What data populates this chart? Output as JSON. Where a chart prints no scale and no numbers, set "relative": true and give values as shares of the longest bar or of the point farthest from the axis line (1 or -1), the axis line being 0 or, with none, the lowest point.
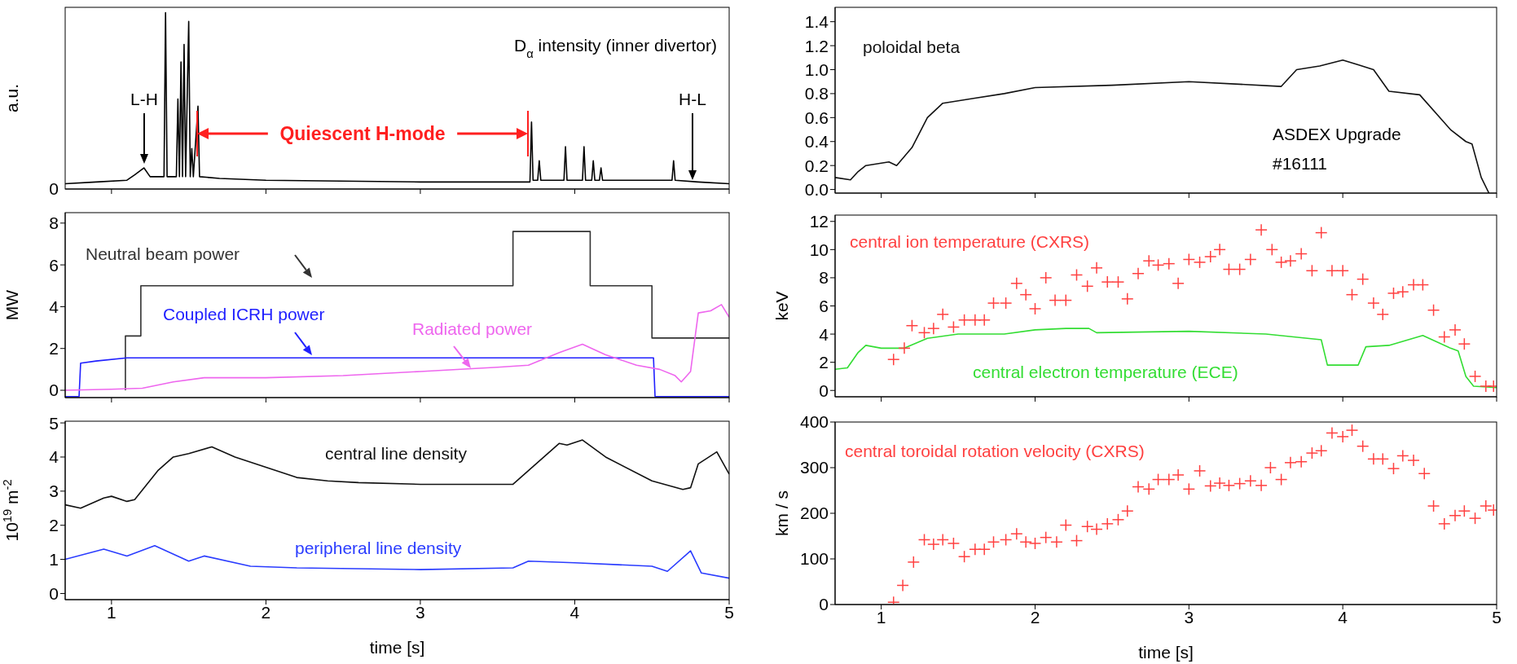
{
  "chart_data": [
    {
      "type": "line",
      "relative": true,
      "title": "D$_{α}$ intensity (inner divertor)",
      "ylabel": "a.u.",
      "xlim": [
        0.7,
        5
      ],
      "xticks": [
        1,
        2,
        3,
        4,
        5
      ],
      "tick_labels": false,
      "series": [
        {
          "color": "#000000",
          "x": [
            0.7,
            0.9,
            1.1,
            1.15,
            1.21,
            1.25,
            1.34,
            1.35,
            1.36,
            1.42,
            1.43,
            1.44,
            1.45,
            1.46,
            1.47,
            1.48,
            1.5,
            1.51,
            1.52,
            1.53,
            1.56,
            1.57,
            1.7,
            2.0,
            3.0,
            3.71,
            3.72,
            3.73,
            3.76,
            3.77,
            3.78,
            3.93,
            3.94,
            3.95,
            4.05,
            4.06,
            4.07,
            4.11,
            4.12,
            4.13,
            4.16,
            4.17,
            4.18,
            4.63,
            4.64,
            4.65,
            4.8,
            5.0
          ],
          "values": [
            0.03,
            0.04,
            0.05,
            0.08,
            0.12,
            0.07,
            0.07,
            1.0,
            0.07,
            0.07,
            0.51,
            0.07,
            0.72,
            0.07,
            0.82,
            0.07,
            0.95,
            0.07,
            0.23,
            0.07,
            0.47,
            0.07,
            0.06,
            0.05,
            0.04,
            0.04,
            0.38,
            0.05,
            0.05,
            0.16,
            0.05,
            0.05,
            0.24,
            0.05,
            0.05,
            0.24,
            0.05,
            0.05,
            0.16,
            0.05,
            0.05,
            0.12,
            0.05,
            0.05,
            0.16,
            0.05,
            0.04,
            0.03
          ]
        }
      ],
      "annotations": [
        "0",
        "L-H",
        "H-L",
        "Quiescent H-mode"
      ]
    },
    {
      "type": "line",
      "ylabel": "MW",
      "xlim": [
        0.7,
        5
      ],
      "xticks": [
        1,
        2,
        3,
        4,
        5
      ],
      "ylim": [
        -0.35,
        8.5
      ],
      "yticks": [
        0,
        2,
        4,
        6,
        8
      ],
      "tick_labels": "y",
      "series": [
        {
          "name": "Neutral beam power",
          "type": "step",
          "color": "#333333",
          "x": [
            1.09,
            1.09,
            1.19,
            3.6,
            4.1,
            4.5,
            5
          ],
          "values": [
            0,
            2.6,
            5,
            7.6,
            5,
            2.5,
            2.5
          ]
        },
        {
          "name": "Coupled ICRH power",
          "color": "#2020ff",
          "x": [
            0.7,
            0.79,
            0.8,
            0.9,
            1.1,
            4.51,
            4.52,
            5
          ],
          "values": [
            -0.3,
            -0.3,
            1.3,
            1.4,
            1.55,
            1.55,
            -0.3,
            -0.3
          ]
        },
        {
          "name": "Radiated power",
          "color": "#ee66ee",
          "x": [
            0.7,
            1.0,
            1.2,
            1.4,
            1.6,
            2.0,
            2.5,
            3.0,
            3.5,
            3.7,
            3.9,
            4.05,
            4.2,
            4.4,
            4.55,
            4.65,
            4.69,
            4.75,
            4.8,
            4.88,
            4.95,
            5.0
          ],
          "values": [
            0,
            0.05,
            0.1,
            0.4,
            0.6,
            0.6,
            0.7,
            0.9,
            1.1,
            1.2,
            1.8,
            2.2,
            1.7,
            1.2,
            1.0,
            0.7,
            0.4,
            0.9,
            3.7,
            3.8,
            4.1,
            3.5
          ]
        }
      ]
    },
    {
      "type": "line",
      "ylabel": "10$^{19}$ m$^{-2}$",
      "xlabel": "time [s]",
      "xlim": [
        0.7,
        5
      ],
      "xticks": [
        1,
        2,
        3,
        4,
        5
      ],
      "ylim": [
        -0.18,
        5.05
      ],
      "yticks": [
        0,
        1,
        2,
        3,
        4,
        5
      ],
      "series": [
        {
          "name": "central line density",
          "color": "#111111",
          "x": [
            0.7,
            0.8,
            0.95,
            1.0,
            1.1,
            1.15,
            1.3,
            1.4,
            1.5,
            1.65,
            1.8,
            2.0,
            2.2,
            2.4,
            2.6,
            3.0,
            3.6,
            3.7,
            3.9,
            3.95,
            4.05,
            4.2,
            4.5,
            4.7,
            4.75,
            4.8,
            4.92,
            5.0
          ],
          "values": [
            2.6,
            2.5,
            2.8,
            2.85,
            2.7,
            2.75,
            3.6,
            4.0,
            4.1,
            4.3,
            4.0,
            3.7,
            3.4,
            3.3,
            3.25,
            3.2,
            3.2,
            3.6,
            4.4,
            4.35,
            4.5,
            4.0,
            3.3,
            3.05,
            3.1,
            3.8,
            4.15,
            3.5
          ]
        },
        {
          "name": "peripheral line density",
          "color": "#2a3cff",
          "x": [
            0.7,
            0.95,
            1.1,
            1.28,
            1.5,
            1.6,
            1.9,
            2.2,
            3.0,
            3.6,
            3.7,
            4.0,
            4.5,
            4.6,
            4.75,
            4.82,
            5.0
          ],
          "values": [
            1.0,
            1.3,
            1.1,
            1.4,
            0.95,
            1.1,
            0.8,
            0.75,
            0.7,
            0.75,
            0.95,
            0.9,
            0.8,
            0.65,
            1.25,
            0.6,
            0.45
          ]
        }
      ]
    },
    {
      "type": "line",
      "xlim": [
        0.7,
        5
      ],
      "xticks": [
        1,
        2,
        3,
        4,
        5
      ],
      "ylim": [
        -0.03,
        1.52
      ],
      "yticks": [
        {
          "value": 0,
          "label": "0.0"
        },
        {
          "value": 0.2,
          "label": "0.2"
        },
        {
          "value": 0.4,
          "label": "0.4"
        },
        {
          "value": 0.6,
          "label": "0.6"
        },
        {
          "value": 0.8,
          "label": "0.8"
        },
        {
          "value": 1,
          "label": "1.0"
        },
        {
          "value": 1.2,
          "label": "1.2"
        },
        {
          "value": 1.4,
          "label": "1.4"
        }
      ],
      "tick_labels": "y",
      "series": [
        {
          "name": "poloidal beta",
          "color": "#111111",
          "x": [
            0.7,
            0.8,
            0.85,
            0.9,
            1.0,
            1.05,
            1.1,
            1.2,
            1.3,
            1.4,
            1.6,
            1.8,
            2.0,
            2.5,
            3.0,
            3.6,
            3.7,
            3.85,
            4.0,
            4.1,
            4.2,
            4.3,
            4.5,
            4.7,
            4.8,
            4.84,
            4.9,
            4.95
          ],
          "values": [
            0.1,
            0.08,
            0.15,
            0.2,
            0.22,
            0.23,
            0.2,
            0.35,
            0.6,
            0.72,
            0.76,
            0.8,
            0.85,
            0.87,
            0.9,
            0.86,
            1.0,
            1.03,
            1.08,
            1.04,
            1.0,
            0.82,
            0.79,
            0.5,
            0.4,
            0.38,
            0.1,
            -0.03
          ]
        }
      ],
      "annotations": [
        "ASDEX Upgrade",
        "#16111"
      ]
    },
    {
      "type": "line",
      "ylabel": "keV",
      "xlim": [
        0.7,
        5
      ],
      "xticks": [
        1,
        2,
        3,
        4,
        5
      ],
      "ylim": [
        -0.45,
        12.45
      ],
      "yticks": [
        0,
        2,
        4,
        6,
        8,
        10,
        12
      ],
      "tick_labels": "y",
      "series": [
        {
          "name": "central ion temperature (CXRS)",
          "type": "scatter",
          "marker": "cross",
          "color": "#ff4040",
          "x": [
            1.08,
            1.15,
            1.2,
            1.28,
            1.34,
            1.4,
            1.47,
            1.54,
            1.61,
            1.67,
            1.73,
            1.81,
            1.88,
            1.94,
            2.0,
            2.07,
            2.13,
            2.2,
            2.27,
            2.34,
            2.4,
            2.47,
            2.54,
            2.6,
            2.67,
            2.74,
            2.8,
            2.87,
            2.93,
            3.0,
            3.07,
            3.14,
            3.2,
            3.26,
            3.33,
            3.4,
            3.47,
            3.54,
            3.6,
            3.66,
            3.73,
            3.8,
            3.86,
            3.93,
            4.0,
            4.06,
            4.13,
            4.2,
            4.26,
            4.33,
            4.39,
            4.46,
            4.52,
            4.59,
            4.66,
            4.73,
            4.79,
            4.86,
            4.93,
            4.98
          ],
          "values": [
            2.2,
            3.0,
            4.6,
            4.1,
            4.4,
            5.4,
            4.5,
            5.0,
            5.0,
            5.0,
            6.2,
            6.2,
            7.6,
            6.8,
            5.8,
            8.0,
            6.4,
            6.4,
            8.2,
            7.4,
            8.7,
            7.7,
            7.7,
            6.5,
            8.3,
            9.2,
            8.9,
            9.0,
            7.6,
            9.3,
            9.1,
            9.5,
            10.0,
            8.6,
            8.6,
            9.3,
            11.4,
            10.0,
            9.1,
            9.2,
            9.7,
            8.5,
            11.2,
            8.5,
            8.5,
            6.8,
            7.9,
            6.2,
            5.4,
            6.9,
            7.0,
            7.5,
            7.5,
            5.7,
            3.8,
            4.3,
            3.3,
            1.0,
            0.3,
            0.3
          ]
        },
        {
          "name": "central electron temperature (ECE)",
          "color": "#33dd33",
          "x": [
            0.7,
            0.78,
            0.85,
            0.9,
            1.0,
            1.15,
            1.3,
            1.5,
            1.8,
            2.0,
            2.2,
            2.35,
            2.4,
            3.0,
            3.5,
            3.86,
            3.9,
            4.1,
            4.15,
            4.3,
            4.52,
            4.7,
            4.75,
            4.8,
            4.85,
            5.0
          ],
          "values": [
            1.5,
            1.6,
            2.7,
            3.2,
            3.0,
            3.0,
            3.7,
            4.0,
            4.0,
            4.3,
            4.4,
            4.4,
            4.1,
            4.2,
            4.0,
            3.6,
            1.8,
            1.8,
            3.1,
            3.2,
            3.9,
            3.0,
            2.8,
            1.0,
            0.3,
            0.2
          ]
        }
      ]
    },
    {
      "type": "scatter",
      "marker": "cross",
      "ylabel": "km / s",
      "xlabel": "time [s]",
      "xlim": [
        0.7,
        5
      ],
      "xticks": [
        1,
        2,
        3,
        4,
        5
      ],
      "ylim": [
        0,
        400
      ],
      "yticks": [
        0,
        100,
        200,
        300,
        400
      ],
      "series": [
        {
          "name": "central toroidal rotation velocity (CXRS)",
          "color": "#ff4040",
          "x": [
            1.08,
            1.14,
            1.21,
            1.28,
            1.34,
            1.4,
            1.47,
            1.54,
            1.61,
            1.67,
            1.73,
            1.81,
            1.88,
            1.94,
            2.0,
            2.07,
            2.14,
            2.2,
            2.27,
            2.34,
            2.4,
            2.47,
            2.54,
            2.6,
            2.67,
            2.74,
            2.8,
            2.87,
            2.93,
            3.0,
            3.07,
            3.14,
            3.2,
            3.26,
            3.33,
            3.4,
            3.47,
            3.53,
            3.6,
            3.66,
            3.73,
            3.8,
            3.86,
            3.93,
            4.0,
            4.06,
            4.13,
            4.2,
            4.26,
            4.33,
            4.39,
            4.46,
            4.53,
            4.59,
            4.66,
            4.73,
            4.79,
            4.86,
            4.93,
            4.98
          ],
          "values": [
            5,
            42,
            93,
            142,
            132,
            142,
            134,
            105,
            121,
            121,
            137,
            142,
            155,
            137,
            134,
            147,
            137,
            174,
            140,
            171,
            165,
            177,
            186,
            205,
            258,
            253,
            274,
            274,
            284,
            253,
            293,
            260,
            266,
            261,
            265,
            271,
            261,
            300,
            274,
            311,
            313,
            332,
            337,
            376,
            368,
            382,
            347,
            319,
            319,
            298,
            326,
            316,
            287,
            216,
            177,
            195,
            205,
            189,
            216,
            207
          ]
        }
      ]
    }
  ]
}
